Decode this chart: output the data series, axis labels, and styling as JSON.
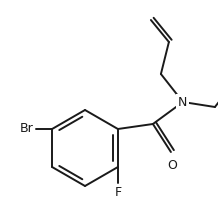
{
  "bg_color": "#ffffff",
  "line_color": "#1a1a1a",
  "line_width": 1.4,
  "figsize": [
    2.18,
    2.19
  ],
  "dpi": 100,
  "xlim": [
    0,
    218
  ],
  "ylim": [
    0,
    219
  ]
}
